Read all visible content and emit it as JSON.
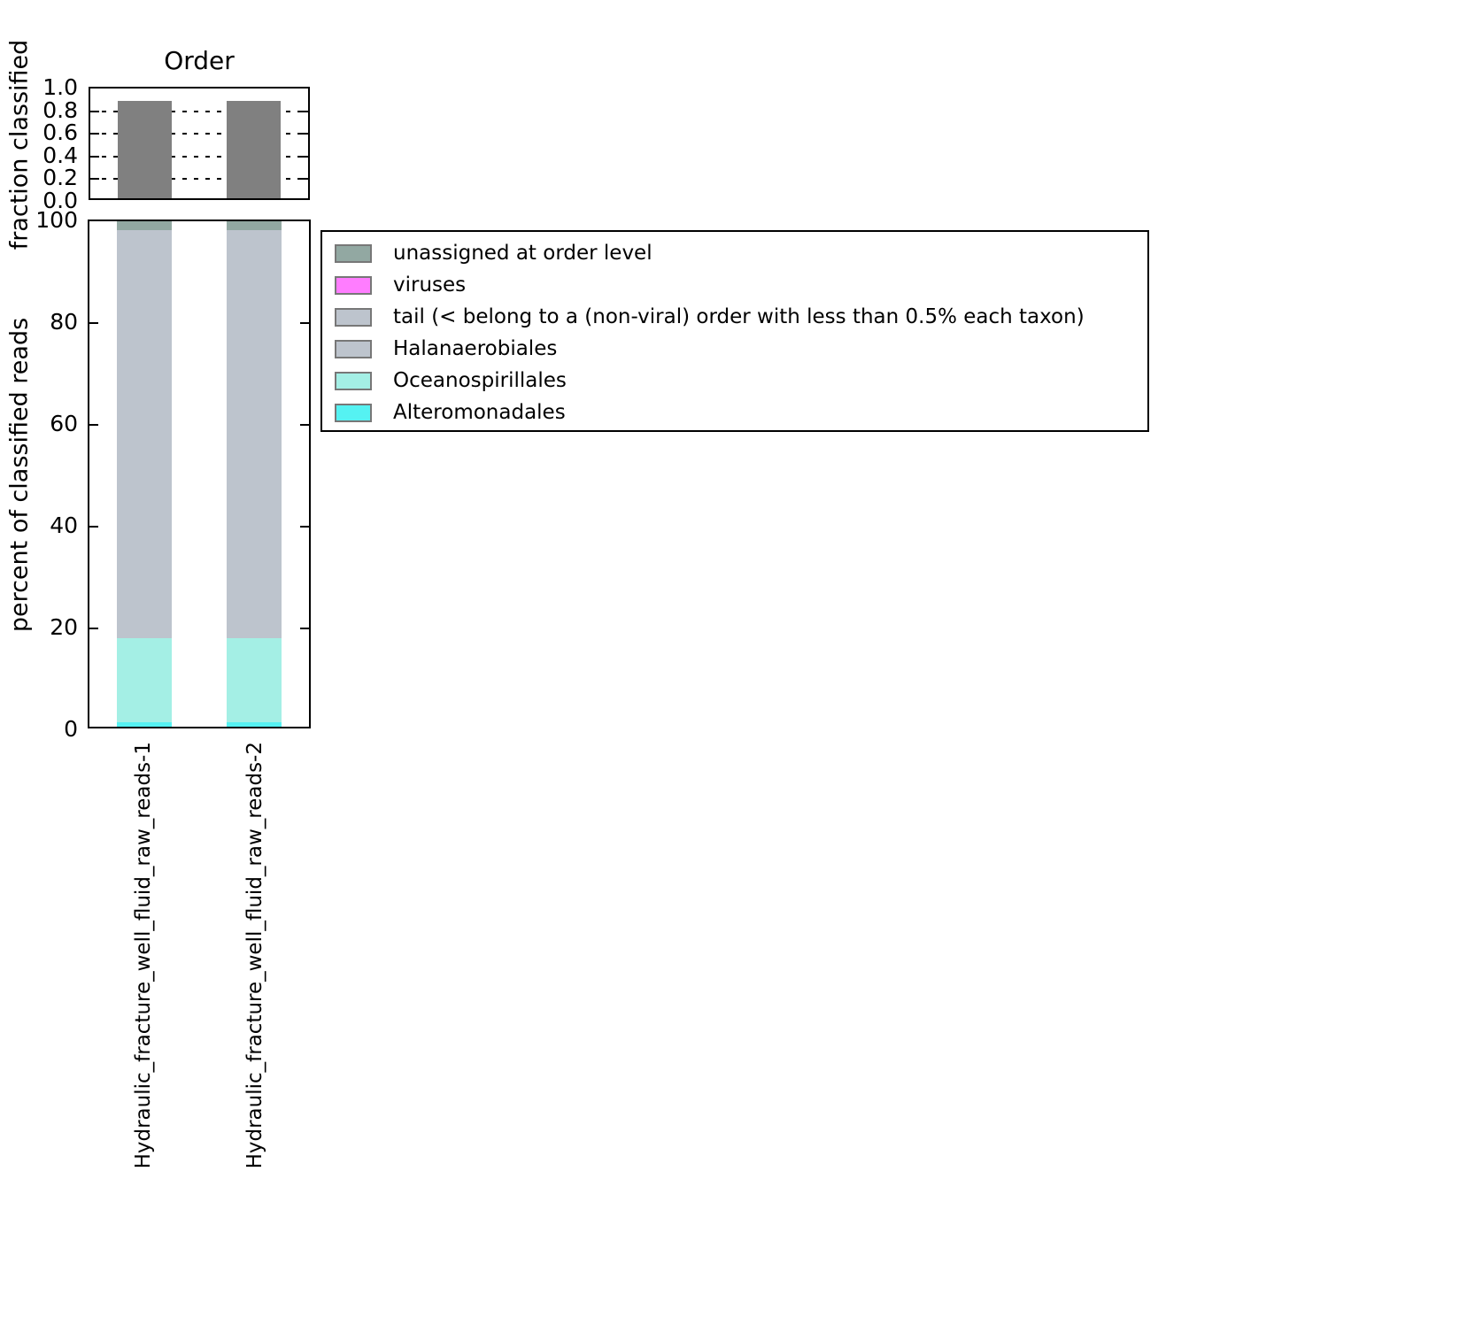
{
  "figure": {
    "title": "Order",
    "background": "#ffffff"
  },
  "chart_data": [
    {
      "type": "bar",
      "title": "Order",
      "ylabel": "fraction classified",
      "xlabel": "",
      "categories": [
        "Hydraulic_fracture_well_fluid_raw_reads-1",
        "Hydraulic_fracture_well_fluid_raw_reads-2"
      ],
      "values": [
        0.89,
        0.89
      ],
      "ylim": [
        0.0,
        1.0
      ],
      "yticks": [
        "0.0",
        "0.2",
        "0.4",
        "0.6",
        "0.8",
        "1.0"
      ],
      "grid": "horizontal dotted lines at 0.2, 0.4, 0.6, 0.8",
      "bar_color": "#808080",
      "legend_position": "none"
    },
    {
      "type": "stacked-bar",
      "title": "",
      "ylabel": "percent of classified reads",
      "xlabel": "",
      "categories": [
        "Hydraulic_fracture_well_fluid_raw_reads-1",
        "Hydraulic_fracture_well_fluid_raw_reads-2"
      ],
      "series": [
        {
          "name": "Alteromonadales",
          "color": "#55f2f2",
          "values": [
            0.8,
            0.8
          ]
        },
        {
          "name": "Oceanospirillales",
          "color": "#a4efe5",
          "values": [
            16.7,
            16.7
          ]
        },
        {
          "name": "Halanaerobiales",
          "color": "#bdc4cd",
          "values": [
            40.4,
            40.4
          ]
        },
        {
          "name": "tail (< belong to a (non-viral) order with less than 0.5% each taxon)",
          "color": "#bdc4cd",
          "values": [
            40.3,
            40.3
          ]
        },
        {
          "name": "viruses",
          "color": "#ff7dff",
          "values": [
            0,
            0
          ]
        },
        {
          "name": "unassigned at order level",
          "color": "#92a8a2",
          "values": [
            1.8,
            1.8
          ]
        }
      ],
      "ylim": [
        0,
        100
      ],
      "yticks": [
        "0",
        "20",
        "40",
        "60",
        "80",
        "100"
      ],
      "grid": "off",
      "legend_position": "upper right, outside plot area"
    }
  ],
  "legend": {
    "entries": [
      {
        "label": "unassigned at order level",
        "color": "#92a8a2"
      },
      {
        "label": "viruses",
        "color": "#ff7dff"
      },
      {
        "label": "tail (< belong to a (non-viral) order with less than 0.5% each taxon)",
        "color": "#bdc4cd"
      },
      {
        "label": "Halanaerobiales",
        "color": "#bdc4cd"
      },
      {
        "label": "Oceanospirillales",
        "color": "#a4efe5"
      },
      {
        "label": "Alteromonadales",
        "color": "#55f2f2"
      }
    ],
    "swatch_border_color": "#777777"
  }
}
